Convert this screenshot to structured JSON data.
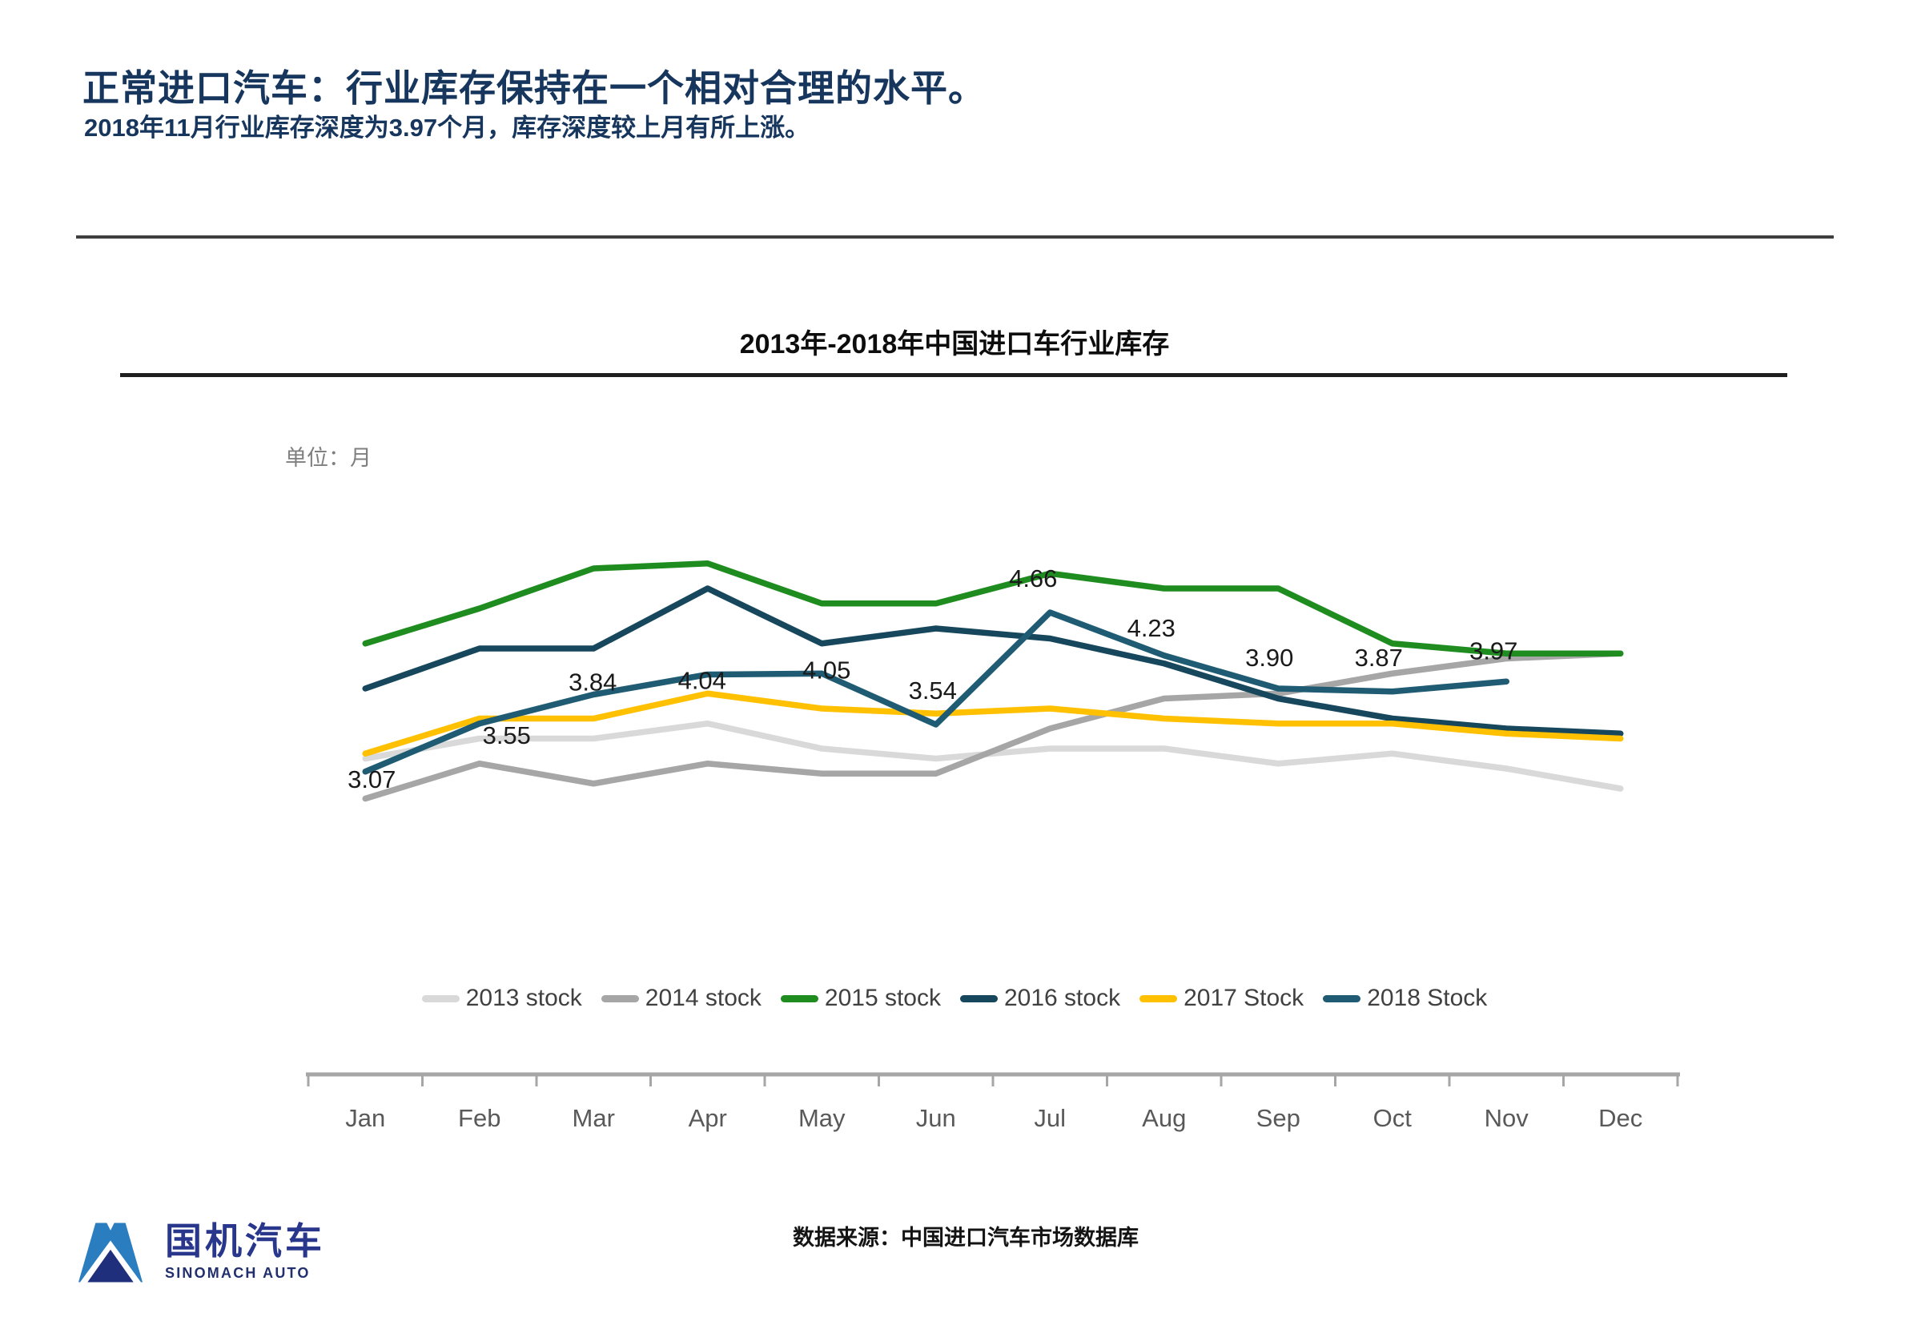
{
  "page": {
    "title": "正常进口汽车：行业库存保持在一个相对合理的水平。",
    "subtitle": "2018年11月行业库存深度为3.97个月，库存深度较上月有所上涨。",
    "source": "数据来源：中国进口汽车市场数据库"
  },
  "logo": {
    "name_cn": "国机汽车",
    "name_en": "SINOMACH AUTO"
  },
  "chart_data": {
    "type": "line",
    "title": "2013年-2018年中国进口车行业库存",
    "unit_label": "单位：月",
    "categories": [
      "Jan",
      "Feb",
      "Mar",
      "Apr",
      "May",
      "Jun",
      "Jul",
      "Aug",
      "Sep",
      "Oct",
      "Nov",
      "Dec"
    ],
    "series": [
      {
        "name": "2013 stock",
        "color": "#d9d9d9",
        "values": [
          3.2,
          3.4,
          3.4,
          3.55,
          3.3,
          3.2,
          3.3,
          3.3,
          3.15,
          3.25,
          3.1,
          2.9
        ]
      },
      {
        "name": "2014 stock",
        "color": "#a6a6a6",
        "values": [
          2.8,
          3.15,
          2.95,
          3.15,
          3.05,
          3.05,
          3.5,
          3.8,
          3.85,
          4.05,
          4.2,
          4.25
        ]
      },
      {
        "name": "2015 stock",
        "color": "#1e8c1e",
        "values": [
          4.35,
          4.7,
          5.1,
          5.15,
          4.75,
          4.75,
          5.05,
          4.9,
          4.9,
          4.35,
          4.25,
          4.25
        ]
      },
      {
        "name": "2016 stock",
        "color": "#17475c",
        "values": [
          3.9,
          4.3,
          4.3,
          4.9,
          4.35,
          4.5,
          4.4,
          4.15,
          3.8,
          3.6,
          3.5,
          3.45
        ]
      },
      {
        "name": "2017 Stock",
        "color": "#ffc000",
        "values": [
          3.25,
          3.6,
          3.6,
          3.85,
          3.7,
          3.65,
          3.7,
          3.6,
          3.55,
          3.55,
          3.45,
          3.4
        ]
      },
      {
        "name": "2018 Stock",
        "color": "#1f5c73",
        "values": [
          3.07,
          3.55,
          3.84,
          4.04,
          4.05,
          3.54,
          4.66,
          4.23,
          3.9,
          3.87,
          3.97
        ],
        "labeled": true
      }
    ],
    "data_labels": {
      "series": "2018 Stock",
      "values": [
        "3.07",
        "3.55",
        "3.84",
        "4.04",
        "4.05",
        "3.54",
        "4.66",
        "4.23",
        "3.90",
        "3.87",
        "3.97"
      ]
    },
    "ylim": [
      2.5,
      5.5
    ],
    "xlabel": "",
    "ylabel": "月",
    "grid": false,
    "legend_position": "bottom"
  }
}
